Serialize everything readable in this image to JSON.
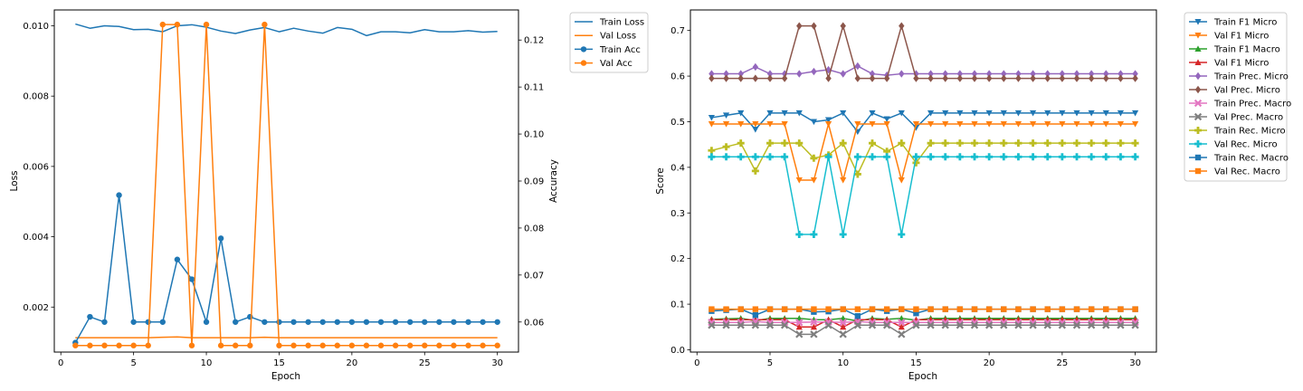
{
  "chart_data": [
    {
      "type": "line",
      "xlabel": "Epoch",
      "ylabel": "Loss",
      "y2label": "Accuracy",
      "x": [
        1,
        2,
        3,
        4,
        5,
        6,
        7,
        8,
        9,
        10,
        11,
        12,
        13,
        14,
        15,
        16,
        17,
        18,
        19,
        20,
        21,
        22,
        23,
        24,
        25,
        26,
        27,
        28,
        29,
        30
      ],
      "xticks": [
        0,
        5,
        10,
        15,
        20,
        25,
        30
      ],
      "xlim": [
        -0.45,
        31.45
      ],
      "ylim": [
        0.00072,
        0.01045
      ],
      "yticks": [
        0.002,
        0.004,
        0.006,
        0.008,
        0.01
      ],
      "ytick_labels": [
        "0.002",
        "0.004",
        "0.006",
        "0.008",
        "0.010"
      ],
      "y2lim": [
        0.0536,
        0.1264
      ],
      "y2ticks": [
        0.06,
        0.07,
        0.08,
        0.09,
        0.1,
        0.11,
        0.12
      ],
      "y2tick_labels": [
        "0.06",
        "0.07",
        "0.08",
        "0.09",
        "0.10",
        "0.11",
        "0.12"
      ],
      "grid": false,
      "legend_position": "outside-top-right",
      "colors": {
        "blue": "#1f77b4",
        "orange": "#ff7f0e"
      },
      "series": [
        {
          "name": "Train Loss",
          "axis": "left",
          "color": "#1f77b4",
          "marker": "none",
          "values": [
            0.01005,
            0.00993,
            0.01,
            0.00998,
            0.00989,
            0.0099,
            0.00983,
            0.01,
            0.01003,
            0.00996,
            0.00985,
            0.00978,
            0.00988,
            0.00995,
            0.00983,
            0.00993,
            0.00985,
            0.00979,
            0.00995,
            0.0099,
            0.00972,
            0.00983,
            0.00983,
            0.0098,
            0.00989,
            0.00983,
            0.00983,
            0.00986,
            0.00982,
            0.00984
          ]
        },
        {
          "name": "Val Loss",
          "axis": "left",
          "color": "#ff7f0e",
          "marker": "none",
          "values": [
            0.00113,
            0.00113,
            0.00113,
            0.00113,
            0.00113,
            0.00113,
            0.00114,
            0.00115,
            0.00113,
            0.00113,
            0.00113,
            0.00113,
            0.00113,
            0.00114,
            0.00113,
            0.00113,
            0.00113,
            0.00113,
            0.00113,
            0.00113,
            0.00113,
            0.00113,
            0.00113,
            0.00113,
            0.00113,
            0.00113,
            0.00113,
            0.00113,
            0.00113,
            0.00113
          ]
        },
        {
          "name": "Train Acc",
          "axis": "right",
          "color": "#1f77b4",
          "marker": "circle",
          "values": [
            0.0556,
            0.0611,
            0.06,
            0.087,
            0.06,
            0.06,
            0.06,
            0.0733,
            0.0691,
            0.06,
            0.0778,
            0.06,
            0.0611,
            0.06,
            0.06,
            0.06,
            0.06,
            0.06,
            0.06,
            0.06,
            0.06,
            0.06,
            0.06,
            0.06,
            0.06,
            0.06,
            0.06,
            0.06,
            0.06,
            0.06
          ]
        },
        {
          "name": "Val Acc",
          "axis": "right",
          "color": "#ff7f0e",
          "marker": "circle",
          "values": [
            0.055,
            0.055,
            0.055,
            0.055,
            0.055,
            0.055,
            0.1233,
            0.1233,
            0.055,
            0.1233,
            0.055,
            0.055,
            0.055,
            0.1233,
            0.055,
            0.055,
            0.055,
            0.055,
            0.055,
            0.055,
            0.055,
            0.055,
            0.055,
            0.055,
            0.055,
            0.055,
            0.055,
            0.055,
            0.055,
            0.055
          ]
        }
      ]
    },
    {
      "type": "line",
      "xlabel": "Epoch",
      "ylabel": "Score",
      "x": [
        1,
        2,
        3,
        4,
        5,
        6,
        7,
        8,
        9,
        10,
        11,
        12,
        13,
        14,
        15,
        16,
        17,
        18,
        19,
        20,
        21,
        22,
        23,
        24,
        25,
        26,
        27,
        28,
        29,
        30
      ],
      "xticks": [
        0,
        5,
        10,
        15,
        20,
        25,
        30
      ],
      "xlim": [
        -0.45,
        31.45
      ],
      "ylim": [
        -0.005,
        0.745
      ],
      "yticks": [
        0.0,
        0.1,
        0.2,
        0.3,
        0.4,
        0.5,
        0.6,
        0.7
      ],
      "ytick_labels": [
        "0.0",
        "0.1",
        "0.2",
        "0.3",
        "0.4",
        "0.5",
        "0.6",
        "0.7"
      ],
      "grid": false,
      "legend_position": "outside-top-right",
      "series": [
        {
          "name": "Train F1 Micro",
          "color": "#1f77b4",
          "marker": "triangle-down",
          "values": [
            0.509,
            0.514,
            0.519,
            0.483,
            0.519,
            0.519,
            0.519,
            0.5,
            0.504,
            0.519,
            0.478,
            0.519,
            0.506,
            0.519,
            0.487,
            0.519,
            0.519,
            0.519,
            0.519,
            0.519,
            0.519,
            0.519,
            0.519,
            0.519,
            0.519,
            0.519,
            0.519,
            0.519,
            0.519,
            0.519
          ]
        },
        {
          "name": "Val F1 Micro",
          "color": "#ff7f0e",
          "marker": "triangle-down",
          "values": [
            0.495,
            0.495,
            0.495,
            0.495,
            0.495,
            0.495,
            0.372,
            0.372,
            0.495,
            0.372,
            0.495,
            0.495,
            0.495,
            0.372,
            0.495,
            0.495,
            0.495,
            0.495,
            0.495,
            0.495,
            0.495,
            0.495,
            0.495,
            0.495,
            0.495,
            0.495,
            0.495,
            0.495,
            0.495,
            0.495
          ]
        },
        {
          "name": "Train F1 Macro",
          "color": "#2ca02c",
          "marker": "triangle-up",
          "values": [
            0.067,
            0.068,
            0.069,
            0.064,
            0.069,
            0.069,
            0.069,
            0.066,
            0.066,
            0.069,
            0.063,
            0.069,
            0.067,
            0.069,
            0.065,
            0.069,
            0.069,
            0.069,
            0.069,
            0.069,
            0.069,
            0.069,
            0.069,
            0.069,
            0.069,
            0.069,
            0.069,
            0.069,
            0.069,
            0.069
          ]
        },
        {
          "name": "Val F1 Micro",
          "color": "#d62728",
          "marker": "triangle-up",
          "values": [
            0.066,
            0.066,
            0.066,
            0.066,
            0.066,
            0.066,
            0.05,
            0.05,
            0.066,
            0.05,
            0.066,
            0.066,
            0.066,
            0.05,
            0.066,
            0.066,
            0.066,
            0.066,
            0.066,
            0.066,
            0.066,
            0.066,
            0.066,
            0.066,
            0.066,
            0.066,
            0.066,
            0.066,
            0.066,
            0.066
          ]
        },
        {
          "name": "Train Prec. Micro",
          "color": "#9467bd",
          "marker": "diamond",
          "values": [
            0.605,
            0.605,
            0.605,
            0.62,
            0.605,
            0.605,
            0.605,
            0.61,
            0.614,
            0.605,
            0.622,
            0.605,
            0.602,
            0.605,
            0.605,
            0.605,
            0.605,
            0.605,
            0.605,
            0.605,
            0.605,
            0.605,
            0.605,
            0.605,
            0.605,
            0.605,
            0.605,
            0.605,
            0.605,
            0.605
          ]
        },
        {
          "name": "Val Prec. Micro",
          "color": "#8c564b",
          "marker": "diamond",
          "values": [
            0.595,
            0.595,
            0.595,
            0.595,
            0.595,
            0.595,
            0.71,
            0.71,
            0.595,
            0.71,
            0.595,
            0.595,
            0.595,
            0.71,
            0.595,
            0.595,
            0.595,
            0.595,
            0.595,
            0.595,
            0.595,
            0.595,
            0.595,
            0.595,
            0.595,
            0.595,
            0.595,
            0.595,
            0.595,
            0.595
          ]
        },
        {
          "name": "Train Prec. Macro",
          "color": "#e377c2",
          "marker": "x",
          "values": [
            0.06,
            0.06,
            0.06,
            0.062,
            0.06,
            0.06,
            0.06,
            0.061,
            0.061,
            0.06,
            0.062,
            0.06,
            0.06,
            0.06,
            0.06,
            0.06,
            0.06,
            0.06,
            0.06,
            0.06,
            0.06,
            0.06,
            0.06,
            0.06,
            0.06,
            0.06,
            0.06,
            0.06,
            0.06,
            0.06
          ]
        },
        {
          "name": "Val Prec. Macro",
          "color": "#7f7f7f",
          "marker": "x",
          "values": [
            0.054,
            0.054,
            0.054,
            0.054,
            0.054,
            0.054,
            0.034,
            0.034,
            0.054,
            0.034,
            0.054,
            0.054,
            0.054,
            0.034,
            0.054,
            0.054,
            0.054,
            0.054,
            0.054,
            0.054,
            0.054,
            0.054,
            0.054,
            0.054,
            0.054,
            0.054,
            0.054,
            0.054,
            0.054,
            0.054
          ]
        },
        {
          "name": "Train Rec. Micro",
          "color": "#bcbd22",
          "marker": "plus",
          "values": [
            0.437,
            0.445,
            0.453,
            0.392,
            0.453,
            0.453,
            0.453,
            0.42,
            0.427,
            0.453,
            0.385,
            0.453,
            0.435,
            0.453,
            0.41,
            0.453,
            0.453,
            0.453,
            0.453,
            0.453,
            0.453,
            0.453,
            0.453,
            0.453,
            0.453,
            0.453,
            0.453,
            0.453,
            0.453,
            0.453
          ]
        },
        {
          "name": "Val Rec. Micro",
          "color": "#17becf",
          "marker": "plus",
          "values": [
            0.423,
            0.423,
            0.423,
            0.423,
            0.423,
            0.423,
            0.253,
            0.253,
            0.423,
            0.253,
            0.423,
            0.423,
            0.423,
            0.253,
            0.423,
            0.423,
            0.423,
            0.423,
            0.423,
            0.423,
            0.423,
            0.423,
            0.423,
            0.423,
            0.423,
            0.423,
            0.423,
            0.423,
            0.423,
            0.423
          ]
        },
        {
          "name": "Train Rec. Macro",
          "color": "#1f77b4",
          "marker": "square",
          "values": [
            0.085,
            0.087,
            0.089,
            0.076,
            0.089,
            0.089,
            0.089,
            0.083,
            0.084,
            0.089,
            0.074,
            0.089,
            0.085,
            0.089,
            0.08,
            0.089,
            0.089,
            0.089,
            0.089,
            0.089,
            0.089,
            0.089,
            0.089,
            0.089,
            0.089,
            0.089,
            0.089,
            0.089,
            0.089,
            0.089
          ]
        },
        {
          "name": "Val Rec. Macro",
          "color": "#ff7f0e",
          "marker": "square",
          "values": [
            0.089,
            0.089,
            0.089,
            0.089,
            0.089,
            0.089,
            0.089,
            0.089,
            0.089,
            0.089,
            0.089,
            0.089,
            0.089,
            0.089,
            0.089,
            0.089,
            0.089,
            0.089,
            0.089,
            0.089,
            0.089,
            0.089,
            0.089,
            0.089,
            0.089,
            0.089,
            0.089,
            0.089,
            0.089,
            0.089
          ]
        }
      ]
    }
  ]
}
